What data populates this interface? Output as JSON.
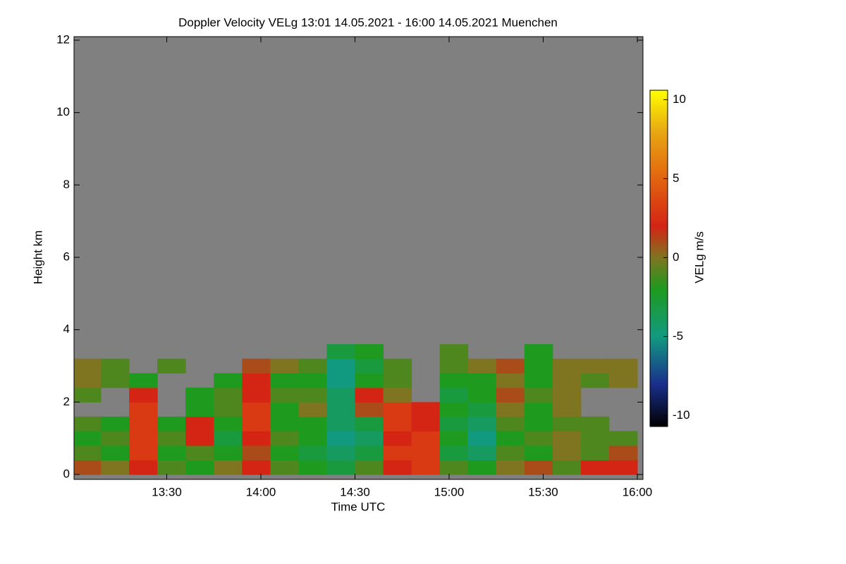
{
  "chart_data": {
    "type": "heatmap",
    "title": "Doppler Velocity VELg   13:01 14.05.2021 - 16:00 14.05.2021 Muenchen",
    "x_label": "Time UTC",
    "y_label": "Height km",
    "colorbar_label": "VELg m/s",
    "background_color": "#808080",
    "xlim": [
      13.0167,
      16.0
    ],
    "xticks": [
      {
        "value": 13.5,
        "label": "13:30"
      },
      {
        "value": 14.0,
        "label": "14:00"
      },
      {
        "value": 14.5,
        "label": "14:30"
      },
      {
        "value": 15.0,
        "label": "15:00"
      },
      {
        "value": 15.5,
        "label": "15:30"
      },
      {
        "value": 16.0,
        "label": "16:00"
      }
    ],
    "ylim": [
      0,
      12
    ],
    "yticks": [
      0,
      2,
      4,
      6,
      8,
      10,
      12
    ],
    "clim": [
      -10.7,
      10.6
    ],
    "cticks": [
      -10,
      -5,
      0,
      5,
      10
    ],
    "colorscale": [
      {
        "value": -10.7,
        "color": "#000000"
      },
      {
        "value": -8,
        "color": "#1a2f8c"
      },
      {
        "value": -5,
        "color": "#129a80"
      },
      {
        "value": -2,
        "color": "#1e9a1e"
      },
      {
        "value": 0,
        "color": "#7f7420"
      },
      {
        "value": 2,
        "color": "#d42414"
      },
      {
        "value": 5,
        "color": "#e26410"
      },
      {
        "value": 8,
        "color": "#e8a812"
      },
      {
        "value": 10.6,
        "color": "#ffff00"
      }
    ],
    "x_bins": [
      13.0,
      13.15,
      13.3,
      13.45,
      13.6,
      13.75,
      13.9,
      14.05,
      14.2,
      14.35,
      14.5,
      14.65,
      14.8,
      14.95,
      15.1,
      15.25,
      15.4,
      15.55,
      15.7,
      15.85,
      16.0
    ],
    "y_bins": [
      0,
      0.4,
      0.8,
      1.2,
      1.6,
      2.0,
      2.4,
      2.8,
      3.2,
      3.6
    ],
    "z": [
      [
        1,
        0,
        2,
        -1,
        -2,
        0,
        2,
        -1,
        -2,
        -3,
        -1,
        2,
        3,
        -1,
        -2,
        0,
        1,
        -1,
        2,
        2
      ],
      [
        -1,
        -2,
        3,
        -2,
        -1,
        -2,
        1,
        -2,
        -3,
        -4,
        -3,
        3,
        3,
        -3,
        -4,
        -1,
        -2,
        0,
        -1,
        1
      ],
      [
        -2,
        -1,
        3,
        -1,
        2,
        -3,
        2,
        -1,
        -2,
        -5,
        -4,
        2,
        3,
        -2,
        -5,
        -2,
        -1,
        0,
        -1,
        -1
      ],
      [
        -1,
        -2,
        3,
        -2,
        2,
        -2,
        3,
        -2,
        -2,
        -4,
        -3,
        3,
        2,
        -3,
        -4,
        -1,
        -2,
        -1,
        -1,
        null
      ],
      [
        null,
        null,
        3,
        null,
        -2,
        -1,
        3,
        -2,
        0,
        -4,
        1,
        3,
        2,
        -2,
        -3,
        0,
        -2,
        0,
        null,
        null
      ],
      [
        -1,
        null,
        2,
        null,
        -2,
        -1,
        2,
        -1,
        -1,
        -4,
        2,
        0,
        null,
        -3,
        -2,
        1,
        -1,
        0,
        null,
        null
      ],
      [
        0,
        -1,
        -2,
        null,
        null,
        -2,
        2,
        -2,
        -2,
        -5,
        -2,
        -1,
        null,
        -2,
        -2,
        0,
        -2,
        0,
        -1,
        0
      ],
      [
        0,
        -1,
        null,
        -1,
        null,
        null,
        1,
        0,
        -1,
        -5,
        -3,
        -1,
        null,
        -1,
        0,
        1,
        -2,
        0,
        0,
        0
      ],
      [
        null,
        null,
        null,
        null,
        null,
        null,
        null,
        null,
        null,
        -3,
        -2,
        null,
        null,
        -1,
        null,
        null,
        -2,
        null,
        null,
        null
      ]
    ]
  }
}
